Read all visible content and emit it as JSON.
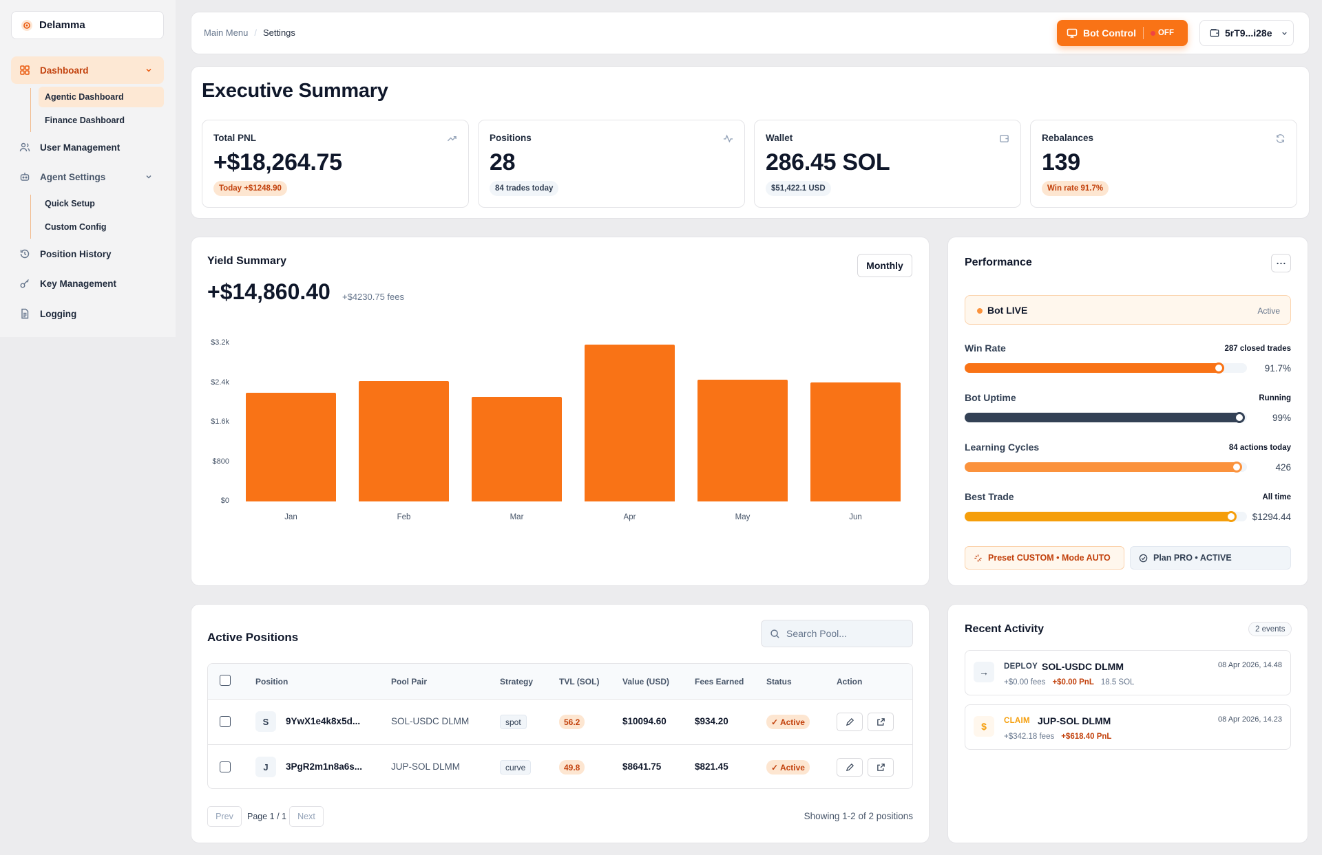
{
  "brand": {
    "name": "Delamma",
    "accent": "#f97316"
  },
  "sidebar": {
    "dashboard": "Dashboard",
    "dashboard_sub": [
      "Agentic Dashboard",
      "Finance Dashboard"
    ],
    "user_management": "User Management",
    "agent_settings": "Agent Settings",
    "agent_sub": [
      "Quick Setup",
      "Custom Config"
    ],
    "position_history": "Position History",
    "key_management": "Key Management",
    "logging": "Logging"
  },
  "header": {
    "breadcrumb_root": "Main Menu",
    "breadcrumb_sep": "/",
    "breadcrumb_current": "Settings",
    "bot_control": "Bot Control",
    "bot_state": "OFF",
    "wallet": "5rT9...i28e"
  },
  "summary": {
    "title": "Executive Summary",
    "stats": [
      {
        "label": "Total PNL",
        "value": "+$18,264.75",
        "pill": "Today +$1248.90",
        "icon": "trending-up-icon"
      },
      {
        "label": "Positions",
        "value": "28",
        "pill": "84 trades today",
        "icon": "activity-icon"
      },
      {
        "label": "Wallet",
        "value": "286.45 SOL",
        "pill": "$51,422.1 USD",
        "icon": "wallet-icon"
      },
      {
        "label": "Rebalances",
        "value": "139",
        "pill": "Win rate 91.7%",
        "icon": "refresh-icon"
      }
    ]
  },
  "yield": {
    "title": "Yield Summary",
    "period": "Monthly",
    "total": "+$14,860.40",
    "fees": "+$4230.75 fees"
  },
  "chart_data": {
    "type": "bar",
    "categories": [
      "Jan",
      "Feb",
      "Mar",
      "Apr",
      "May",
      "Jun"
    ],
    "values": [
      2200,
      2440,
      2120,
      3170,
      2460,
      2410
    ],
    "ylim": [
      0,
      3200
    ],
    "yticks": [
      "$0",
      "$800",
      "$1.6k",
      "$2.4k",
      "$3.2k"
    ],
    "color": "#f97316",
    "grid": false
  },
  "performance": {
    "title": "Performance",
    "live_label": "Bot LIVE",
    "live_state": "Active",
    "metrics": [
      {
        "label": "Win Rate",
        "sub": "287 closed trades",
        "value": "91.7%",
        "level": 0.917,
        "color": "#f97316"
      },
      {
        "label": "Bot Uptime",
        "sub": "Running",
        "value": "99%",
        "level": 0.99,
        "color": "#334155"
      },
      {
        "label": "Learning Cycles",
        "sub": "84 actions today",
        "value": "426",
        "level": 0.98,
        "color": "#fb923c"
      },
      {
        "label": "Best Trade",
        "sub": "All time",
        "value": "$1294.44",
        "level": 0.96,
        "color": "#f59e0b"
      }
    ],
    "preset": "Preset CUSTOM • Mode AUTO",
    "plan": "Plan PRO • ACTIVE"
  },
  "positions": {
    "title": "Active Positions",
    "search_placeholder": "Search Pool...",
    "columns": [
      "Position",
      "Pool Pair",
      "Strategy",
      "TVL (SOL)",
      "Value (USD)",
      "Fees Earned",
      "Status",
      "Action"
    ],
    "rows": [
      {
        "avatar": "S",
        "position": "9YwX1e4k8x5d...",
        "pool": "SOL-USDC DLMM",
        "strategy": "spot",
        "tvl": "56.2",
        "value": "$10094.60",
        "fees": "$934.20",
        "status": "✓ Active"
      },
      {
        "avatar": "J",
        "position": "3PgR2m1n8a6s...",
        "pool": "JUP-SOL DLMM",
        "strategy": "curve",
        "tvl": "49.8",
        "value": "$8641.75",
        "fees": "$821.45",
        "status": "✓ Active"
      }
    ],
    "prev": "Prev",
    "page": "Page 1 / 1",
    "next": "Next",
    "showing": "Showing 1-2 of 2 positions"
  },
  "activity": {
    "title": "Recent Activity",
    "count": "2 events",
    "events": [
      {
        "icon": "→",
        "kind": "DEPLOY",
        "title": "SOL-USDC DLMM",
        "time": "08 Apr 2026, 14.48",
        "fees": "+$0.00 fees",
        "pnl": "+$0.00 PnL",
        "extra": "18.5 SOL"
      },
      {
        "icon": "$",
        "kind": "CLAIM",
        "title": "JUP-SOL DLMM",
        "time": "08 Apr 2026, 14.23",
        "fees": "+$342.18 fees",
        "pnl": "+$618.40 PnL",
        "extra": ""
      }
    ]
  }
}
